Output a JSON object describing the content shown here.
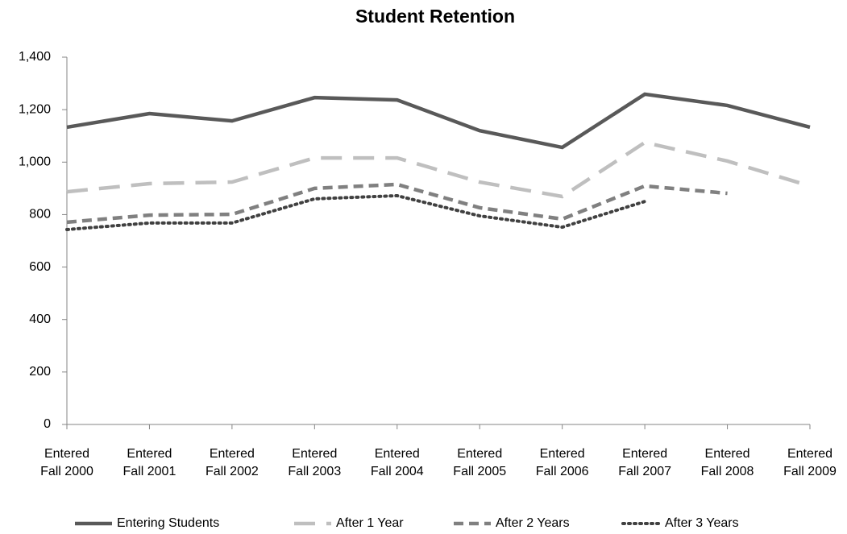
{
  "chart_data": {
    "type": "line",
    "title": "Student Retention",
    "categories": [
      "Entered Fall 2000",
      "Entered Fall 2001",
      "Entered Fall 2002",
      "Entered Fall 2003",
      "Entered Fall 2004",
      "Entered Fall 2005",
      "Entered Fall 2006",
      "Entered Fall 2007",
      "Entered Fall 2008",
      "Entered Fall 2009"
    ],
    "series": [
      {
        "name": "Entering Students",
        "color": "#595959",
        "dash": "solid",
        "values": [
          1133,
          1185,
          1157,
          1246,
          1237,
          1120,
          1056,
          1259,
          1216,
          1133
        ]
      },
      {
        "name": "After 1 Year",
        "color": "#bfbfbf",
        "dash": "long",
        "values": [
          887,
          918,
          924,
          1016,
          1016,
          924,
          869,
          1075,
          1004,
          909
        ]
      },
      {
        "name": "After 2 Years",
        "color": "#808080",
        "dash": "short",
        "values": [
          771,
          798,
          801,
          900,
          915,
          826,
          783,
          909,
          881,
          null
        ]
      },
      {
        "name": "After 3 Years",
        "color": "#404040",
        "dash": "dot",
        "values": [
          743,
          768,
          768,
          860,
          872,
          795,
          752,
          850,
          null,
          null
        ]
      }
    ],
    "ylim": [
      0,
      1400
    ],
    "yticks": [
      0,
      200,
      400,
      600,
      800,
      {
        "value": 1000,
        "label": "1,000"
      },
      {
        "value": 1200,
        "label": "1,200"
      },
      {
        "value": 1400,
        "label": "1,400"
      }
    ],
    "legend": "bottom"
  }
}
